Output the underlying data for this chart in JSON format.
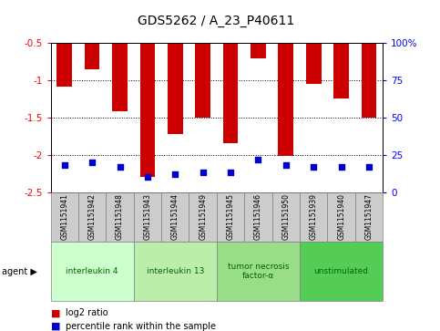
{
  "title": "GDS5262 / A_23_P40611",
  "samples": [
    "GSM1151941",
    "GSM1151942",
    "GSM1151948",
    "GSM1151943",
    "GSM1151944",
    "GSM1151949",
    "GSM1151945",
    "GSM1151946",
    "GSM1151950",
    "GSM1151939",
    "GSM1151940",
    "GSM1151947"
  ],
  "log2_ratio": [
    -1.08,
    -0.85,
    -1.42,
    -2.3,
    -1.72,
    -1.5,
    -1.85,
    -0.7,
    -2.02,
    -1.05,
    -1.25,
    -1.5
  ],
  "percentile_rank": [
    18,
    20,
    17,
    10,
    12,
    13,
    13,
    22,
    18,
    17,
    17,
    17
  ],
  "agents": [
    {
      "label": "interleukin 4",
      "start": 0,
      "end": 2,
      "color": "#ccffcc"
    },
    {
      "label": "interleukin 13",
      "start": 3,
      "end": 5,
      "color": "#bbeeaa"
    },
    {
      "label": "tumor necrosis\nfactor-α",
      "start": 6,
      "end": 8,
      "color": "#99dd88"
    },
    {
      "label": "unstimulated",
      "start": 9,
      "end": 11,
      "color": "#55cc55"
    }
  ],
  "ylim_left": [
    -2.5,
    -0.5
  ],
  "ylim_right": [
    0,
    100
  ],
  "yticks_left": [
    -2.5,
    -2.0,
    -1.5,
    -1.0,
    -0.5
  ],
  "yticks_right": [
    0,
    25,
    50,
    75,
    100
  ],
  "ytick_labels_left": [
    "-2.5",
    "-2",
    "-1.5",
    "-1",
    "-0.5"
  ],
  "ytick_labels_right": [
    "0",
    "25",
    "50",
    "75",
    "100%"
  ],
  "bar_color": "#cc0000",
  "percentile_color": "#0000cc",
  "background_color": "#ffffff",
  "gridline_color": "#000000",
  "agent_label_color": "#006600",
  "tick_box_color": "#cccccc"
}
